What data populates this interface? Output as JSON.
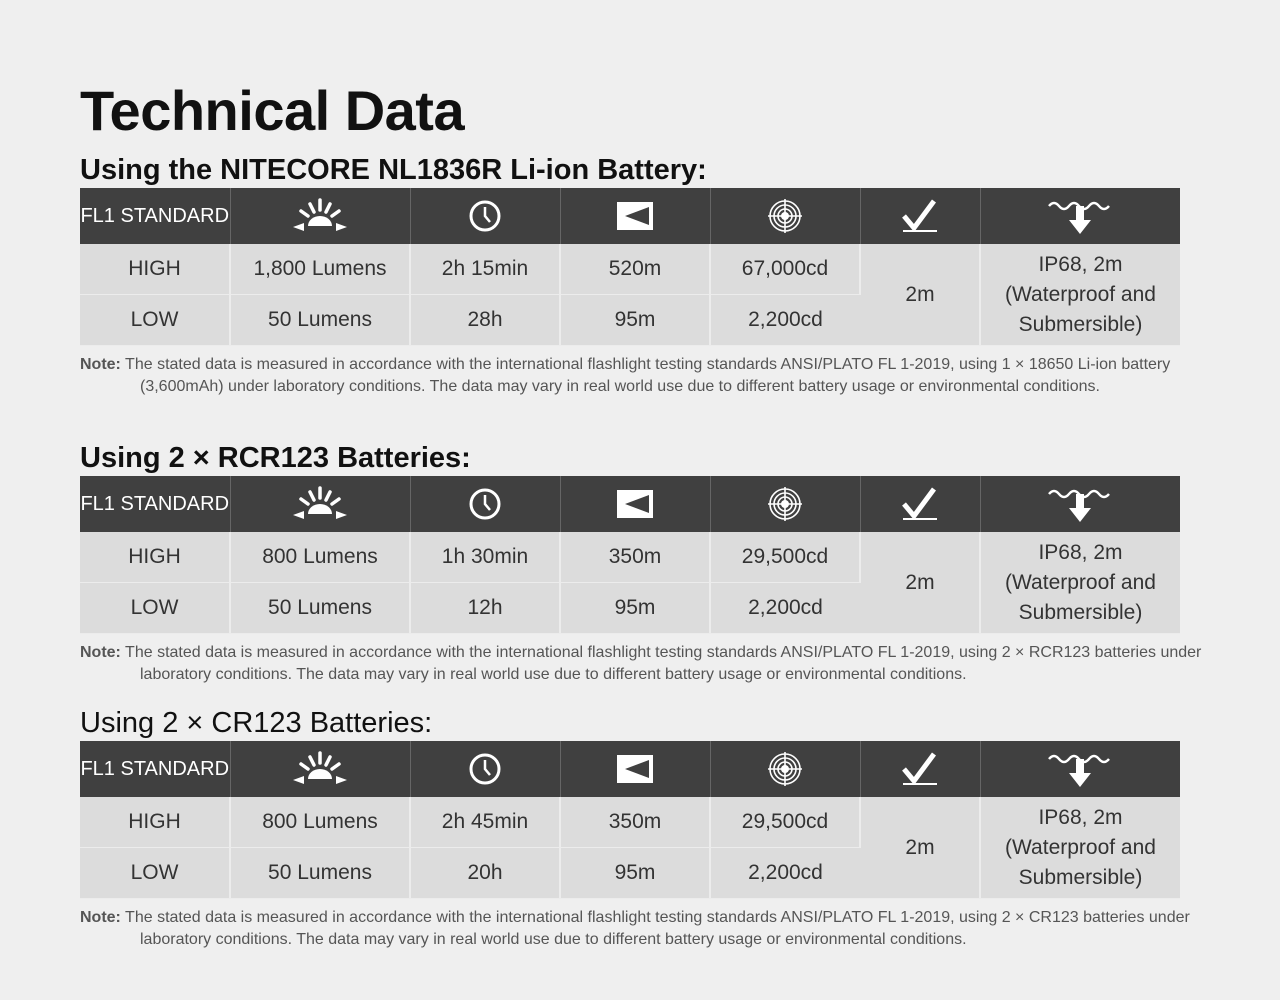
{
  "title": "Technical Data",
  "sections": [
    {
      "heading": "Using the NITECORE NL1836R Li-ion Battery:",
      "header_label": "FL1 STANDARD",
      "rows": [
        {
          "mode": "HIGH",
          "output": "1,800 Lumens",
          "runtime": "2h 15min",
          "distance": "520m",
          "intensity": "67,000cd"
        },
        {
          "mode": "LOW",
          "output": "50 Lumens",
          "runtime": "28h",
          "distance": "95m",
          "intensity": "2,200cd"
        }
      ],
      "impact": "2m",
      "waterproof": "IP68, 2m (Waterproof and Submersible)",
      "note_label": "Note:",
      "note": "The stated data is measured in accordance with the international flashlight testing standards ANSI/PLATO FL 1-2019, using 1 × 18650 Li-ion battery (3,600mAh) under laboratory conditions. The data may vary in real world use due to different battery usage or environmental conditions."
    },
    {
      "heading": "Using 2 × RCR123 Batteries:",
      "header_label": "FL1 STANDARD",
      "rows": [
        {
          "mode": "HIGH",
          "output": "800 Lumens",
          "runtime": "1h 30min",
          "distance": "350m",
          "intensity": "29,500cd"
        },
        {
          "mode": "LOW",
          "output": "50 Lumens",
          "runtime": "12h",
          "distance": "95m",
          "intensity": "2,200cd"
        }
      ],
      "impact": "2m",
      "waterproof": "IP68, 2m (Waterproof and Submersible)",
      "note_label": "Note:",
      "note": "The stated data is measured in accordance with the international flashlight testing standards ANSI/PLATO FL 1-2019, using 2 × RCR123 batteries under laboratory conditions. The data may vary in real world use due to different battery usage or environmental conditions."
    },
    {
      "heading": "Using 2 × CR123 Batteries:",
      "header_label": "FL1 STANDARD",
      "rows": [
        {
          "mode": "HIGH",
          "output": "800 Lumens",
          "runtime": "2h 45min",
          "distance": "350m",
          "intensity": "29,500cd"
        },
        {
          "mode": "LOW",
          "output": "50 Lumens",
          "runtime": "20h",
          "distance": "95m",
          "intensity": "2,200cd"
        }
      ],
      "impact": "2m",
      "waterproof": "IP68, 2m (Waterproof and Submersible)",
      "note_label": "Note:",
      "note": "The stated data is measured in accordance with the international flashlight testing standards ANSI/PLATO FL 1-2019, using 2 × CR123 batteries under laboratory conditions. The data may vary in real world use due to different battery usage or environmental conditions."
    }
  ],
  "icons": [
    "brightness-icon",
    "runtime-clock-icon",
    "beam-distance-icon",
    "peak-intensity-icon",
    "impact-resistance-icon",
    "waterproof-icon"
  ],
  "colors": {
    "header_bg": "#404040",
    "row_bg": "#dcdcdc",
    "page_bg": "#efefef"
  }
}
